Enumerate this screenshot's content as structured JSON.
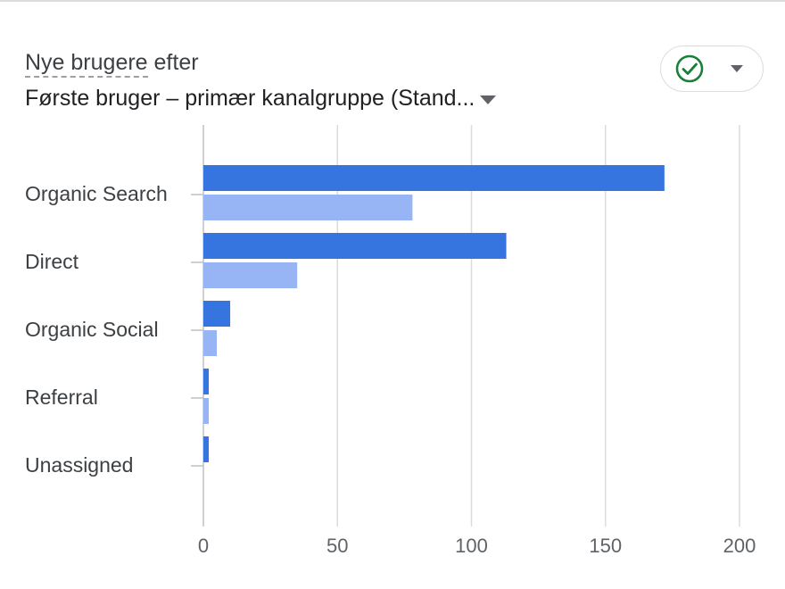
{
  "header": {
    "metric_label": "Nye brugere",
    "metric_suffix": "efter",
    "dimension_label": "Første bruger – primær kanalgruppe (Stand..."
  },
  "status": {
    "icon": "check-circle-icon",
    "dropdown_icon": "caret-down-icon",
    "color": "#188038"
  },
  "colors": {
    "primary": "#3674e0",
    "comparison": "#97b5f5",
    "grid": "#dadce0"
  },
  "chart_data": {
    "type": "bar",
    "orientation": "horizontal",
    "categories": [
      "Organic Search",
      "Direct",
      "Organic Social",
      "Referral",
      "Unassigned"
    ],
    "series": [
      {
        "values": [
          172,
          113,
          10,
          2,
          2
        ]
      },
      {
        "values": [
          78,
          35,
          5,
          2,
          0
        ]
      }
    ],
    "xlim": [
      0,
      200
    ],
    "xticks": [
      0,
      50,
      100,
      150,
      200
    ],
    "grid": true,
    "legend": "none"
  }
}
